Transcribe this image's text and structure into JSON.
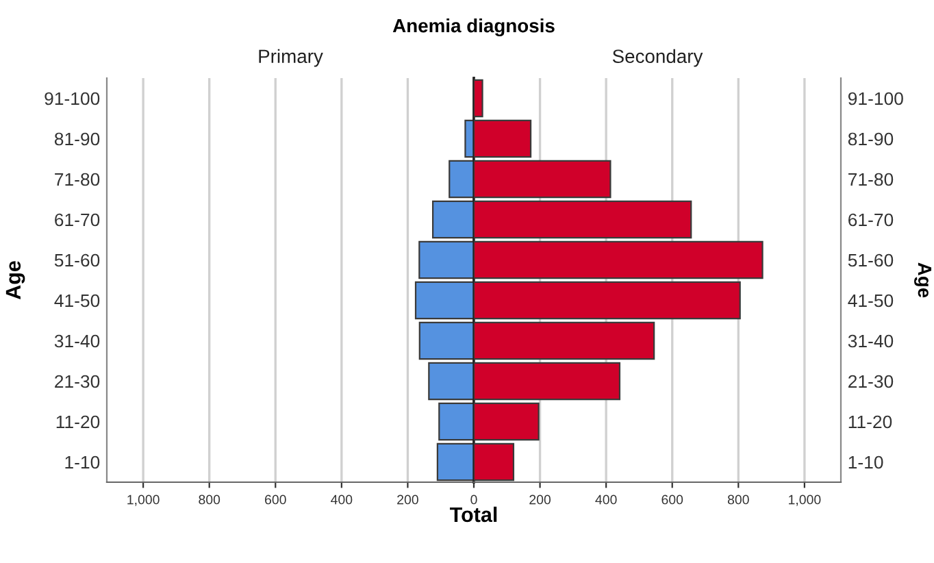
{
  "chart_data": [
    {
      "type": "bar",
      "orientation": "horizontal",
      "title": "Anemia diagnosis",
      "subtitle": "Primary",
      "xlabel": "Total",
      "ylabel": "Age",
      "categories": [
        "91-100",
        "81-90",
        "71-80",
        "61-70",
        "51-60",
        "41-50",
        "31-40",
        "21-30",
        "11-20",
        "1-10"
      ],
      "series": [
        {
          "color": "#5592e0",
          "values": [
            null,
            26,
            74,
            124,
            165,
            176,
            164,
            136,
            105,
            110
          ]
        }
      ],
      "xlim": [
        1110,
        0
      ],
      "xticks": [
        {
          "value": 1000,
          "label": "1,000"
        },
        800,
        600,
        400,
        200
      ],
      "grid": "x",
      "legend": false
    },
    {
      "type": "bar",
      "orientation": "horizontal",
      "subtitle": "Secondary",
      "ylabel": "Age",
      "categories": [
        "91-100",
        "81-90",
        "71-80",
        "61-70",
        "51-60",
        "41-50",
        "31-40",
        "21-30",
        "11-20",
        "1-10"
      ],
      "series": [
        {
          "color": "#d0002a",
          "values": [
            26,
            172,
            413,
            657,
            873,
            805,
            545,
            441,
            196,
            120
          ]
        }
      ],
      "xlim": [
        0,
        1110
      ],
      "xticks": [
        0,
        200,
        400,
        600,
        800,
        {
          "value": 1000,
          "label": "1,000"
        }
      ],
      "grid": "x",
      "legend": false
    }
  ]
}
